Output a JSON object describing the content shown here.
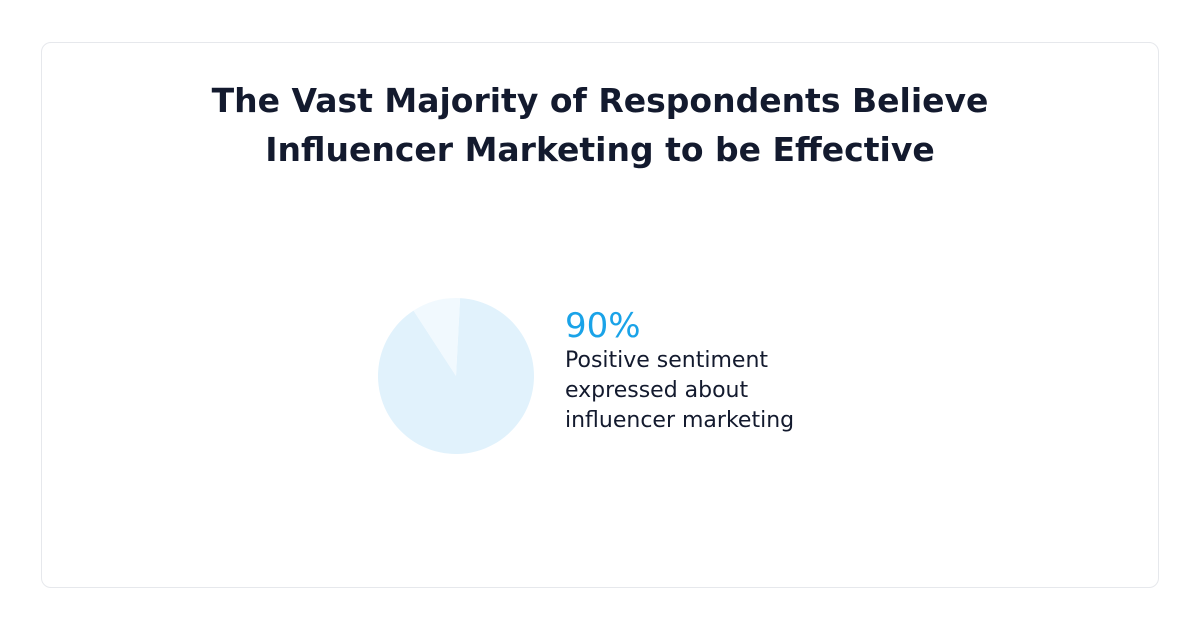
{
  "chart_data": {
    "type": "pie",
    "title": "The Vast Majority of Respondents Believe Influencer Marketing to be Effective",
    "categories": [
      "Positive sentiment expressed about influencer marketing",
      null
    ],
    "values": [
      90,
      10
    ],
    "value_labels": [
      "90%",
      null
    ],
    "colors": [
      "#e1f2fc",
      "#f1f9fe"
    ],
    "label_color": "#1aa3e8"
  }
}
